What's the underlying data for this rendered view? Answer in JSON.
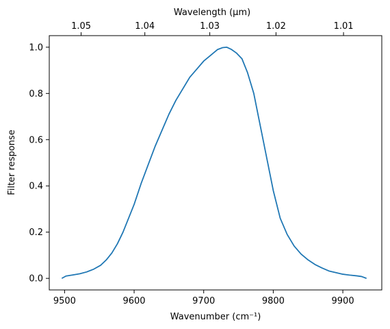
{
  "chart_data": {
    "type": "line",
    "title": "",
    "xlabel": "Wavenumber (cm⁻¹)",
    "ylabel": "Filter response",
    "top_xlabel": "Wavelength (μm)",
    "xlim": [
      9478,
      9956
    ],
    "ylim": [
      -0.05,
      1.05
    ],
    "grid": false,
    "line_color": "#1f77b4",
    "x_ticks": [
      {
        "value": 9500,
        "label": "9500"
      },
      {
        "value": 9600,
        "label": "9600"
      },
      {
        "value": 9700,
        "label": "9700"
      },
      {
        "value": 9800,
        "label": "9800"
      },
      {
        "value": 9900,
        "label": "9900"
      }
    ],
    "y_ticks": [
      {
        "value": 0.0,
        "label": "0.0"
      },
      {
        "value": 0.2,
        "label": "0.2"
      },
      {
        "value": 0.4,
        "label": "0.4"
      },
      {
        "value": 0.6,
        "label": "0.6"
      },
      {
        "value": 0.8,
        "label": "0.8"
      },
      {
        "value": 1.0,
        "label": "1.0"
      }
    ],
    "top_ticks": [
      {
        "value": 1.05,
        "label": "1.05"
      },
      {
        "value": 1.04,
        "label": "1.04"
      },
      {
        "value": 1.03,
        "label": "1.03"
      },
      {
        "value": 1.02,
        "label": "1.02"
      },
      {
        "value": 1.01,
        "label": "1.01"
      }
    ],
    "series": [
      {
        "x": [
          9496,
          9502,
          9512,
          9522,
          9532,
          9542,
          9552,
          9560,
          9568,
          9576,
          9584,
          9592,
          9600,
          9610,
          9620,
          9630,
          9640,
          9650,
          9660,
          9670,
          9680,
          9690,
          9700,
          9710,
          9720,
          9727,
          9733,
          9740,
          9747,
          9755,
          9763,
          9772,
          9780,
          9790,
          9800,
          9810,
          9820,
          9830,
          9840,
          9850,
          9860,
          9870,
          9880,
          9890,
          9900,
          9910,
          9920,
          9927,
          9934
        ],
        "y": [
          0.0,
          0.01,
          0.015,
          0.02,
          0.028,
          0.04,
          0.057,
          0.08,
          0.11,
          0.15,
          0.2,
          0.26,
          0.32,
          0.41,
          0.49,
          0.57,
          0.64,
          0.71,
          0.77,
          0.82,
          0.87,
          0.905,
          0.94,
          0.965,
          0.99,
          0.998,
          1.0,
          0.99,
          0.975,
          0.95,
          0.89,
          0.8,
          0.68,
          0.53,
          0.38,
          0.26,
          0.19,
          0.14,
          0.105,
          0.08,
          0.06,
          0.045,
          0.032,
          0.025,
          0.018,
          0.014,
          0.011,
          0.008,
          0.0
        ]
      }
    ]
  }
}
